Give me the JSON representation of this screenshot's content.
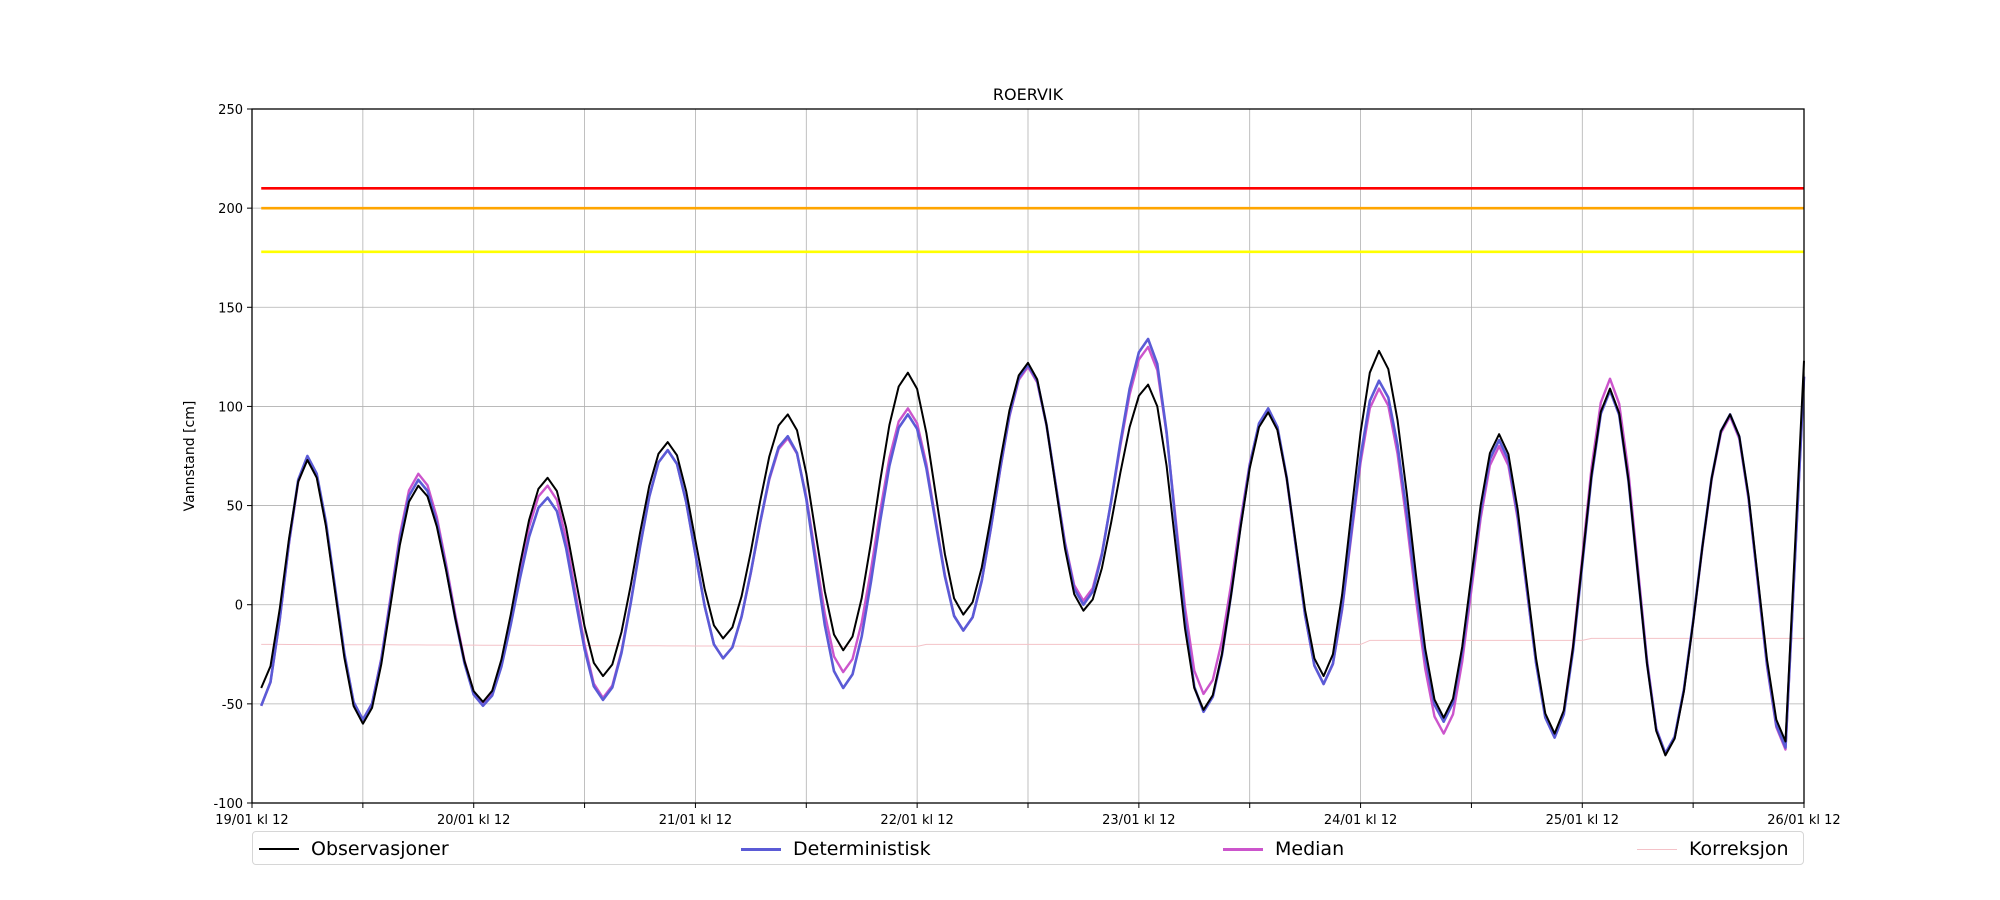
{
  "chart_data": {
    "type": "line",
    "title": "ROERVIK",
    "xlabel": "",
    "ylabel": "Vannstand [cm]",
    "ylim": [
      -100,
      250
    ],
    "yticks": [
      -100,
      -50,
      0,
      50,
      100,
      150,
      200,
      250
    ],
    "xlim_hours": [
      0,
      168
    ],
    "xtick_labels": [
      "19/01 kl 12",
      "20/01 kl 12",
      "21/01 kl 12",
      "22/01 kl 12",
      "23/01 kl 12",
      "24/01 kl 12",
      "25/01 kl 12",
      "26/01 kl 12"
    ],
    "grid": true,
    "legend_position": "bottom",
    "thresholds": [
      {
        "value": 210,
        "color": "#ff0000"
      },
      {
        "value": 200,
        "color": "#ffa500"
      },
      {
        "value": 178,
        "color": "#ffff00"
      }
    ],
    "series": [
      {
        "name": "Observasjoner",
        "color": "#000000",
        "extrema": [
          [
            1,
            -42
          ],
          [
            6,
            73
          ],
          [
            12,
            -60
          ],
          [
            18,
            60
          ],
          [
            25,
            -49
          ],
          [
            32,
            64
          ],
          [
            38,
            -36
          ],
          [
            45,
            82
          ],
          [
            51,
            -17
          ],
          [
            58,
            96
          ],
          [
            64,
            -23
          ],
          [
            71,
            117
          ],
          [
            77,
            -5
          ],
          [
            84,
            122
          ],
          [
            90,
            -3
          ],
          [
            97,
            111
          ],
          [
            103,
            -53
          ],
          [
            110,
            97
          ],
          [
            116,
            -36
          ],
          [
            122,
            128
          ],
          [
            129,
            -57
          ],
          [
            135,
            86
          ],
          [
            141,
            -65
          ],
          [
            147,
            109
          ],
          [
            153,
            -76
          ],
          [
            160,
            96
          ],
          [
            166,
            -69
          ],
          [
            168,
            123
          ]
        ]
      },
      {
        "name": "Deterministisk",
        "color": "#5b5bd6",
        "extrema": [
          [
            1,
            -51
          ],
          [
            6,
            75
          ],
          [
            12,
            -58
          ],
          [
            18,
            63
          ],
          [
            25,
            -51
          ],
          [
            32,
            54
          ],
          [
            38,
            -48
          ],
          [
            45,
            78
          ],
          [
            51,
            -27
          ],
          [
            58,
            85
          ],
          [
            64,
            -42
          ],
          [
            71,
            96
          ],
          [
            77,
            -13
          ],
          [
            84,
            121
          ],
          [
            90,
            0
          ],
          [
            97,
            134
          ],
          [
            103,
            -54
          ],
          [
            110,
            99
          ],
          [
            116,
            -40
          ],
          [
            122,
            113
          ],
          [
            129,
            -59
          ],
          [
            135,
            83
          ],
          [
            141,
            -67
          ],
          [
            147,
            108
          ],
          [
            153,
            -75
          ],
          [
            160,
            96
          ],
          [
            166,
            -72
          ],
          [
            168,
            115
          ]
        ]
      },
      {
        "name": "Median",
        "color": "#cc55cc",
        "extrema": [
          [
            1,
            -51
          ],
          [
            6,
            74
          ],
          [
            12,
            -58
          ],
          [
            18,
            66
          ],
          [
            25,
            -50
          ],
          [
            32,
            60
          ],
          [
            38,
            -47
          ],
          [
            45,
            78
          ],
          [
            51,
            -27
          ],
          [
            58,
            84
          ],
          [
            64,
            -34
          ],
          [
            71,
            99
          ],
          [
            77,
            -13
          ],
          [
            84,
            120
          ],
          [
            90,
            2
          ],
          [
            97,
            130
          ],
          [
            103,
            -45
          ],
          [
            110,
            98
          ],
          [
            116,
            -40
          ],
          [
            122,
            109
          ],
          [
            129,
            -65
          ],
          [
            135,
            80
          ],
          [
            141,
            -66
          ],
          [
            147,
            114
          ],
          [
            153,
            -75
          ],
          [
            160,
            95
          ],
          [
            166,
            -73
          ],
          [
            168,
            115
          ]
        ]
      },
      {
        "name": "Korreksjon",
        "color": "#f4c2c8",
        "extrema": [
          [
            1,
            -20
          ],
          [
            60,
            -21
          ],
          [
            72,
            -21
          ],
          [
            73,
            -20
          ],
          [
            120,
            -20
          ],
          [
            121,
            -18
          ],
          [
            144,
            -18
          ],
          [
            145,
            -17
          ],
          [
            168,
            -17
          ]
        ]
      }
    ]
  }
}
